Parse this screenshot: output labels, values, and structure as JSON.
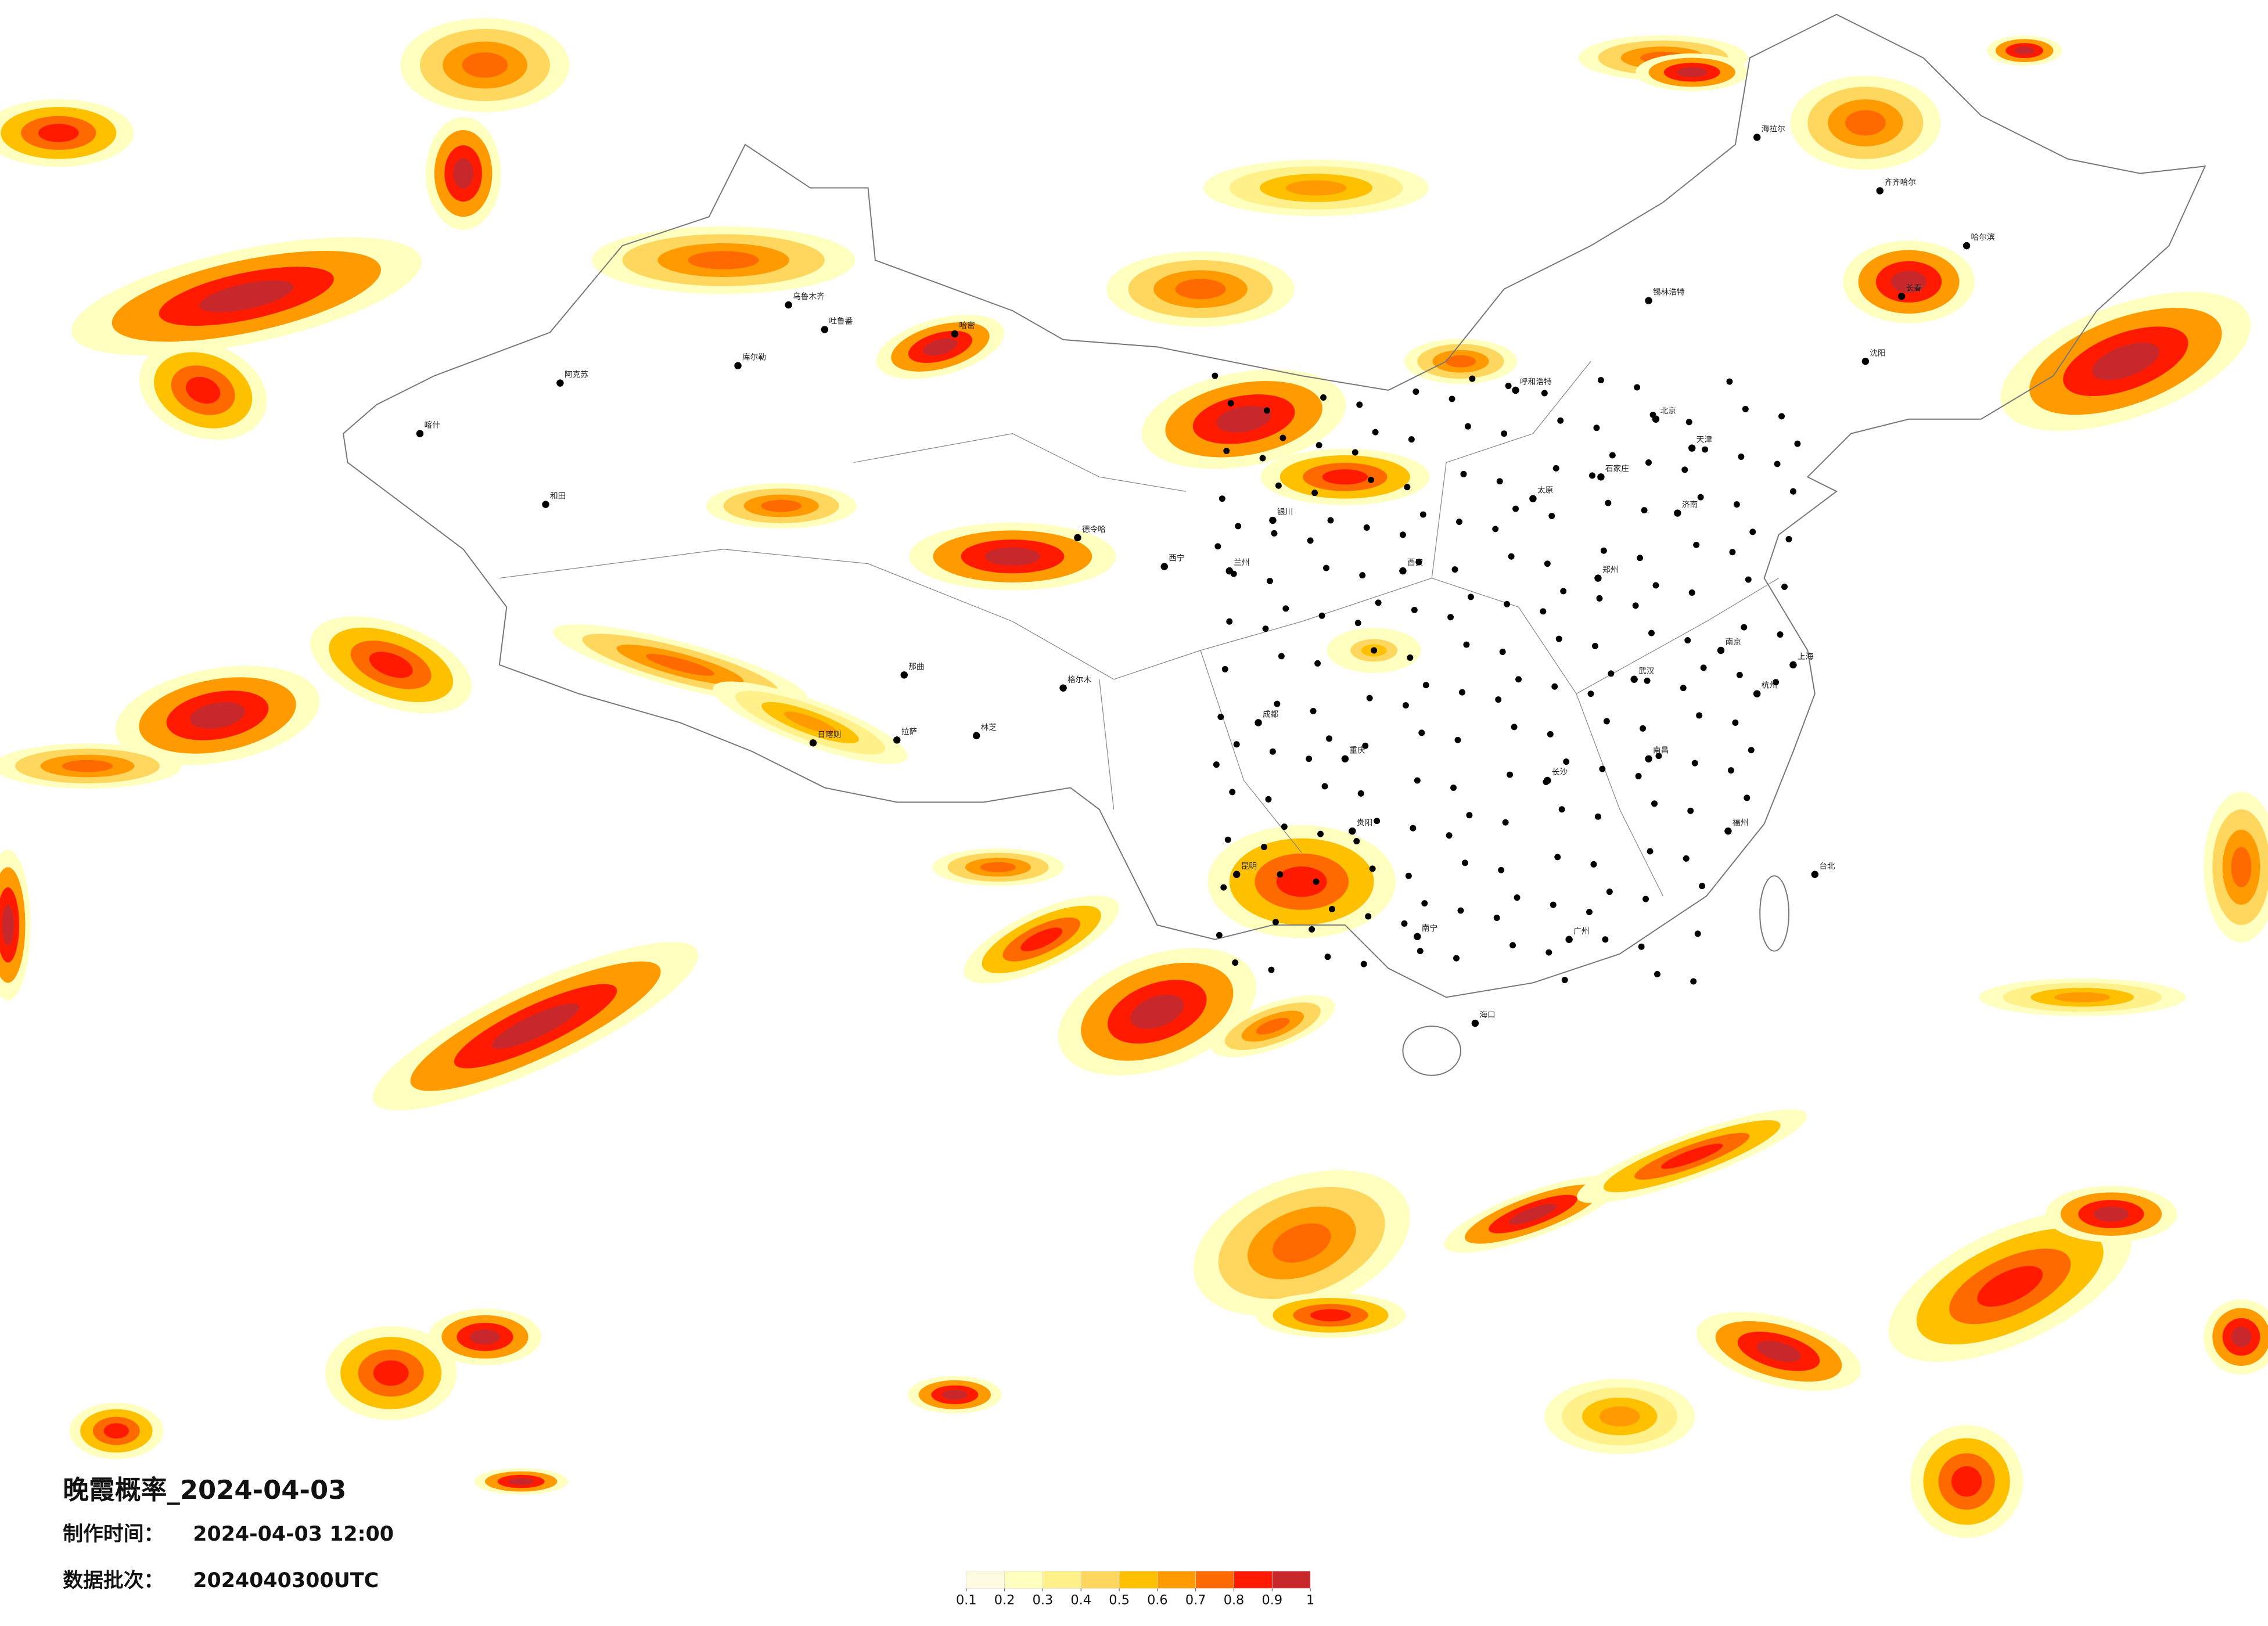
{
  "header": {
    "title": "晚霞概率_2024-04-03",
    "made_label": "制作时间：",
    "made_time": "2024-04-03 12:00",
    "batch_label": "数据批次：",
    "batch": "2024040300UTC"
  },
  "legend": {
    "ticks": [
      0.1,
      0.2,
      0.3,
      0.4,
      0.5,
      0.6,
      0.7,
      0.8,
      0.9,
      1
    ],
    "colors": [
      "#fffbe0",
      "#ffffc0",
      "#fff08a",
      "#ffd75e",
      "#ffc000",
      "#ff9a00",
      "#ff6a00",
      "#ff1a00",
      "#c8282c"
    ]
  },
  "cities": [
    "喀什",
    "和田",
    "阿克苏",
    "库尔勒",
    "吐鲁番",
    "乌鲁木齐",
    "哈密",
    "德令哈",
    "格尔木",
    "那曲",
    "拉萨",
    "日喀则",
    "林芝",
    "西宁",
    "兰州",
    "银川",
    "呼和浩特",
    "北京",
    "天津",
    "石家庄",
    "太原",
    "济南",
    "郑州",
    "西安",
    "成都",
    "重庆",
    "贵阳",
    "昆明",
    "南宁",
    "广州",
    "长沙",
    "武汉",
    "南昌",
    "杭州",
    "南京",
    "上海",
    "福州",
    "海口",
    "台北",
    "哈尔滨",
    "长春",
    "沈阳",
    "锡林浩特",
    "海拉尔",
    "齐齐哈尔"
  ]
}
